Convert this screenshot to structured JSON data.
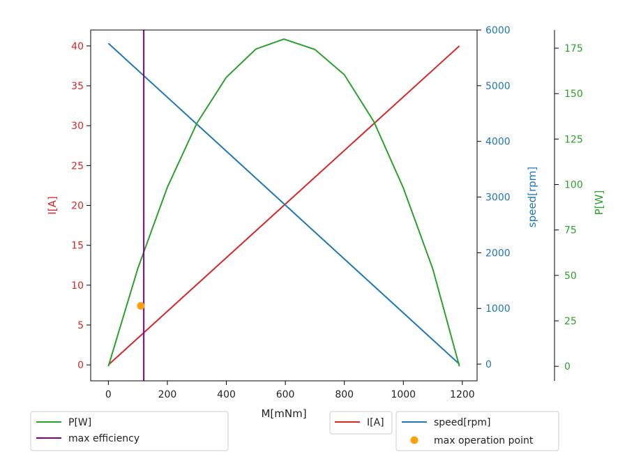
{
  "chart_data": {
    "type": "line",
    "xlabel": "M[mNm]",
    "xlim": [
      -60,
      1250
    ],
    "x_ticks": [
      0,
      200,
      400,
      600,
      800,
      1000,
      1200
    ],
    "axes": {
      "current": {
        "label": "I[A]",
        "color": "#d62728",
        "ylim": [
          -2,
          42
        ],
        "ticks": [
          0,
          5,
          10,
          15,
          20,
          25,
          30,
          35,
          40
        ]
      },
      "speed": {
        "label": "speed[rpm]",
        "color": "#1f77b4",
        "ylim": [
          -300,
          6000
        ],
        "ticks": [
          0,
          1000,
          2000,
          3000,
          4000,
          5000,
          6000
        ]
      },
      "power": {
        "label": "P[W]",
        "color": "#2ca02c",
        "ylim": [
          -8,
          185
        ],
        "ticks": [
          0,
          25,
          50,
          75,
          100,
          125,
          150,
          175
        ]
      }
    },
    "series": [
      {
        "name": "I[A]",
        "axis": "current",
        "color": "#d62728",
        "x": [
          0,
          1190
        ],
        "y": [
          0,
          40
        ]
      },
      {
        "name": "speed[rpm]",
        "axis": "speed",
        "color": "#1f77b4",
        "x": [
          0,
          1190
        ],
        "y": [
          5760,
          0
        ]
      },
      {
        "name": "P[W]",
        "axis": "power",
        "color": "#2ca02c",
        "x": [
          0,
          100,
          200,
          300,
          400,
          500,
          595,
          700,
          800,
          900,
          1000,
          1100,
          1190
        ],
        "y": [
          0,
          53.9,
          98.5,
          133.7,
          159.0,
          174.5,
          180.0,
          174.3,
          160.4,
          134.6,
          98.1,
          53.5,
          0
        ]
      }
    ],
    "max_efficiency": {
      "name": "max efficiency",
      "color": "#800080",
      "x": 120
    },
    "max_operation_point": {
      "name": "max operation point",
      "color": "#ff9f0e",
      "x": 110,
      "y": 7.4,
      "axis": "current"
    },
    "legends": {
      "left": [
        "P[W]",
        "max efficiency"
      ],
      "middle": [
        "I[A]"
      ],
      "right": [
        "speed[rpm]",
        "max operation point"
      ]
    }
  }
}
